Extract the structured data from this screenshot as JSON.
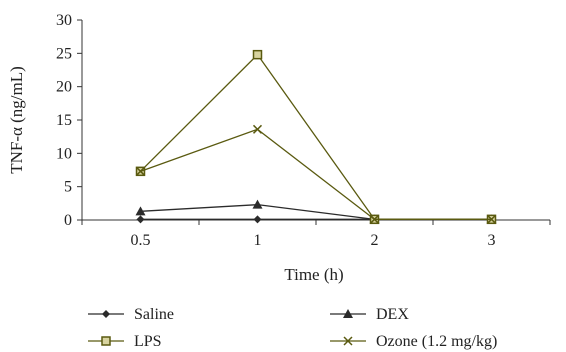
{
  "chart_data": {
    "type": "line",
    "xlabel": "Time (h)",
    "ylabel": "TNF-α (ng/mL)",
    "categories": [
      "0.5",
      "1",
      "2",
      "3"
    ],
    "ylim": [
      0,
      30
    ],
    "yticks": [
      "0",
      "5",
      "10",
      "15",
      "20",
      "25",
      "30"
    ],
    "grid": false,
    "legend_position": "bottom",
    "series": [
      {
        "name": "Saline",
        "marker": "diamond",
        "color": "#2b2b2b",
        "values": [
          0.1,
          0.1,
          0.1,
          0.1
        ]
      },
      {
        "name": "DEX",
        "marker": "triangle",
        "color": "#2b2b2b",
        "values": [
          1.3,
          2.3,
          0.1,
          0.1
        ]
      },
      {
        "name": "LPS",
        "marker": "square",
        "color": "#5a5a10",
        "values": [
          7.3,
          24.8,
          0.1,
          0.1
        ]
      },
      {
        "name": "Ozone (1.2 mg/kg)",
        "marker": "x",
        "color": "#5a5a10",
        "values": [
          7.3,
          13.6,
          0.1,
          0.1
        ]
      }
    ]
  }
}
